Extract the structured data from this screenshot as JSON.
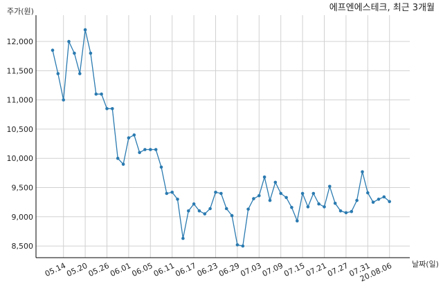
{
  "chart_data": {
    "type": "line",
    "title": "에프엔에스테크, 최근 3개월",
    "xlabel": "날짜(일)",
    "ylabel": "주가(원)",
    "line_color": "#2a7ab0",
    "grid": true,
    "ylim": [
      8300,
      12450
    ],
    "yticks": [
      8500,
      9000,
      9500,
      10000,
      10500,
      11000,
      11500,
      12000
    ],
    "ytick_labels": [
      "8,500",
      "9,000",
      "9,500",
      "10,000",
      "10,500",
      "11,000",
      "11,500",
      "12,000"
    ],
    "xtick_labels": [
      "05.14",
      "05.20",
      "05.26",
      "06.01",
      "06.05",
      "06.11",
      "06.17",
      "06.23",
      "06.29",
      "07.03",
      "07.09",
      "07.15",
      "07.21",
      "07.27",
      "07.31",
      "20.08.06"
    ],
    "xtick_index": [
      2,
      6,
      10,
      14,
      18,
      22,
      26,
      30,
      34,
      38,
      42,
      46,
      50,
      54,
      58,
      62
    ],
    "values": [
      11850,
      11450,
      11000,
      12000,
      11800,
      11450,
      12200,
      11800,
      11100,
      11100,
      10850,
      10850,
      10000,
      9900,
      10350,
      10400,
      10100,
      10150,
      10150,
      10150,
      9850,
      9400,
      9420,
      9300,
      8630,
      9100,
      9220,
      9100,
      9050,
      9140,
      9420,
      9400,
      9140,
      9020,
      8520,
      8500,
      9130,
      9310,
      9360,
      9680,
      9280,
      9590,
      9400,
      9330,
      9160,
      8930,
      9400,
      9170,
      9400,
      9220,
      9170,
      9520,
      9230,
      9100,
      9070,
      9090,
      9280,
      9770,
      9410,
      9250,
      9300,
      9340,
      9260
    ]
  }
}
